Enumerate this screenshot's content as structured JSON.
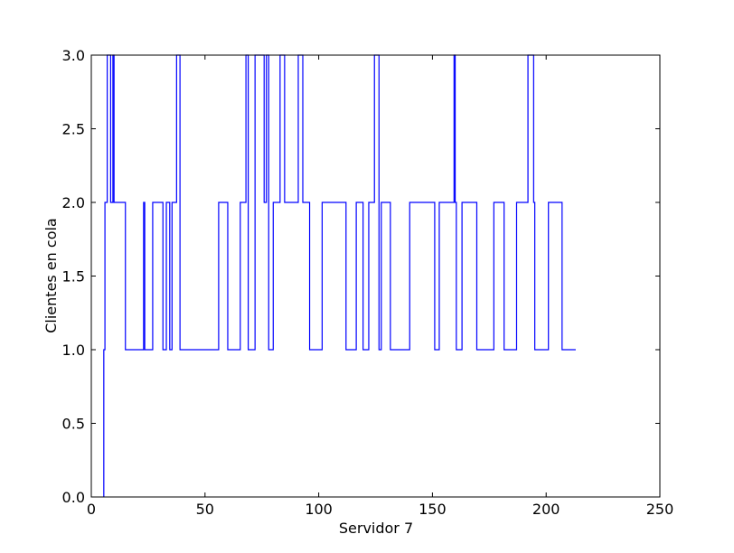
{
  "chart_data": {
    "type": "line",
    "step": "post",
    "xlabel": "Servidor 7",
    "ylabel": "Clientes en cola",
    "xlim": [
      0,
      250
    ],
    "ylim": [
      0.0,
      3.0
    ],
    "xticks": [
      0,
      50,
      100,
      150,
      200,
      250
    ],
    "xtick_labels": [
      "0",
      "50",
      "100",
      "150",
      "200",
      "250"
    ],
    "yticks": [
      0.0,
      0.5,
      1.0,
      1.5,
      2.0,
      2.5,
      3.0
    ],
    "ytick_labels": [
      "0.0",
      "0.5",
      "1.0",
      "1.5",
      "2.0",
      "2.5",
      "3.0"
    ],
    "grid": false,
    "line_color": "#0000ff",
    "series": [
      {
        "x": [
          5.5,
          6,
          7,
          8.5,
          9.5,
          10,
          15,
          23,
          23.5,
          24,
          27,
          31.5,
          33,
          34.5,
          35.5,
          37.5,
          39,
          56,
          60,
          65.5,
          68,
          69,
          72,
          76,
          77,
          78,
          80,
          83,
          85,
          91,
          93,
          96,
          101.5,
          112,
          116.5,
          119.5,
          122,
          124.5,
          126.5,
          127.5,
          131.5,
          138,
          140,
          151,
          153,
          159.5,
          160,
          160.5,
          163,
          169.5,
          177,
          181.5,
          187,
          192,
          194.5,
          195,
          201,
          207,
          209.5,
          213
        ],
        "y": [
          1,
          2,
          3,
          2,
          3,
          2,
          1,
          2,
          1,
          1,
          2,
          1,
          2,
          1,
          2,
          3,
          1,
          2,
          1,
          2,
          3,
          1,
          3,
          2,
          3,
          1,
          2,
          3,
          2,
          3,
          2,
          1,
          2,
          1,
          2,
          1,
          2,
          3,
          1,
          2,
          1,
          1,
          2,
          1,
          2,
          3,
          2,
          1,
          2,
          1,
          2,
          1,
          2,
          3,
          2,
          1,
          2,
          1,
          1,
          1
        ]
      }
    ]
  }
}
